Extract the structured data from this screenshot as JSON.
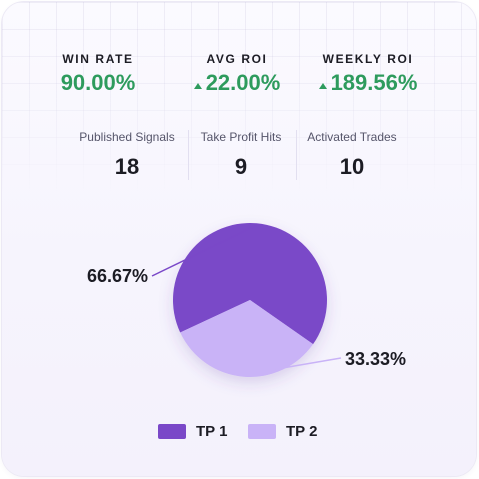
{
  "stats": [
    {
      "label": "WIN RATE",
      "value": "90.00%",
      "trend": "none"
    },
    {
      "label": "AVG ROI",
      "value": "22.00%",
      "trend": "up"
    },
    {
      "label": "WEEKLY ROI",
      "value": "189.56%",
      "trend": "up"
    }
  ],
  "counts": [
    {
      "label": "Published Signals",
      "value": "18"
    },
    {
      "label": "Take Profit Hits",
      "value": "9"
    },
    {
      "label": "Activated Trades",
      "value": "10"
    }
  ],
  "colors": {
    "positive": "#2e9b5d",
    "tp1": "#7a48c8",
    "tp2": "#c9b3f7"
  },
  "chart_data": {
    "type": "pie",
    "series": [
      {
        "name": "TP 1",
        "value": 66.67,
        "label": "66.67%",
        "color": "#7a48c8"
      },
      {
        "name": "TP 2",
        "value": 33.33,
        "label": "33.33%",
        "color": "#c9b3f7"
      }
    ],
    "legend_position": "bottom"
  }
}
